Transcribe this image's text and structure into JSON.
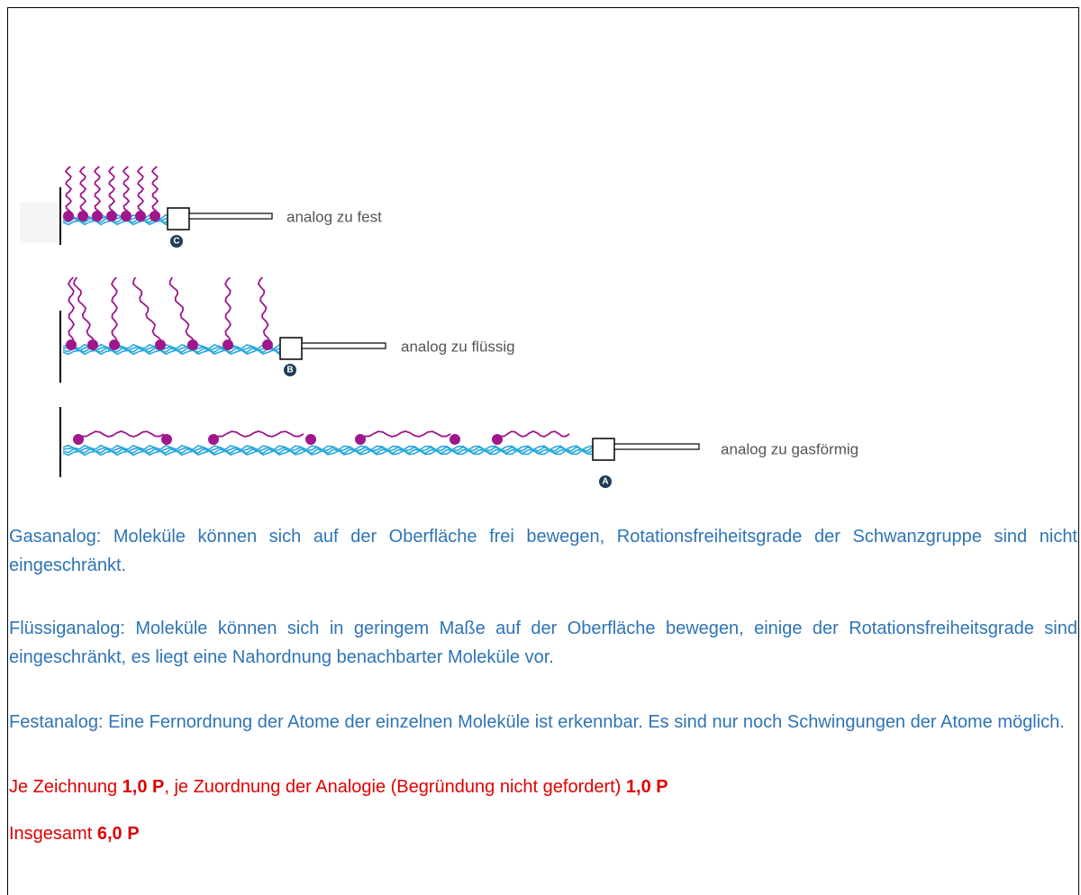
{
  "diagram": {
    "panels": [
      {
        "label": "analog zu fest",
        "marker": "C"
      },
      {
        "label": "analog zu flüssig",
        "marker": "B"
      },
      {
        "label": "analog zu gasförmig",
        "marker": "A"
      }
    ]
  },
  "paragraphs": [
    "Gasanalog: Moleküle können sich auf der Oberfläche frei bewegen, Rotationsfreiheitsgrade der Schwanzgruppe sind nicht eingeschränkt.",
    "Flüssiganalog: Moleküle können sich in geringem Maße auf der Oberfläche bewegen, einige der Rotationsfreiheitsgrade sind eingeschränkt, es liegt eine Nahordnung benachbarter Moleküle vor.",
    "Festanalog: Eine Fernordnung der Atome der einzelnen Moleküle ist erkennbar. Es sind nur noch Schwingungen der Atome möglich."
  ],
  "scoring": [
    [
      "Je Zeichnung ",
      "1,0 P",
      ", je Zuordnung der Analogie (Begründung nicht gefordert) ",
      "1,0 P"
    ],
    [
      "Insgesamt ",
      "6,0 P"
    ]
  ]
}
